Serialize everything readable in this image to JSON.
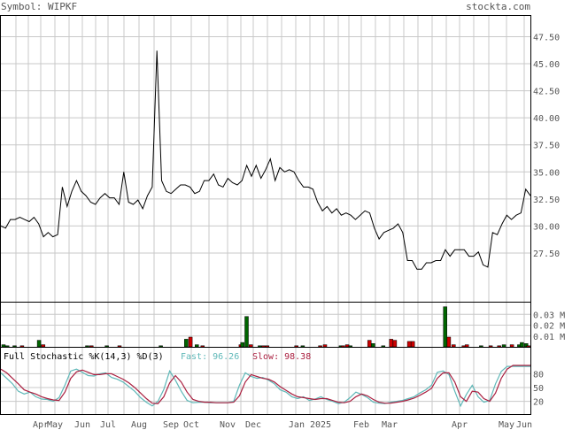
{
  "header": {
    "symbol_label": "Symbol: WIPKF",
    "site": "stockta.com"
  },
  "price_panel": {
    "y_ticks": [
      "47.50",
      "45.00",
      "42.50",
      "40.00",
      "37.50",
      "35.00",
      "32.50",
      "30.00",
      "27.50"
    ]
  },
  "volume_panel": {
    "y_ticks": [
      "0.03 M",
      "0.02 M",
      "0.01 M"
    ]
  },
  "stoch_panel": {
    "title": "Full Stochastic %K(14,3) %D(3)",
    "fast_label": "Fast: 96.26",
    "slow_label": "Slow: 98.38",
    "y_ticks": [
      "80",
      "50",
      "20"
    ]
  },
  "x_labels": [
    "Apr",
    "May",
    "Jun",
    "Jul",
    "Aug",
    "Sep",
    "Oct",
    "Nov",
    "Dec",
    "Jan 2025",
    "Feb",
    "Mar",
    "Apr",
    "May",
    "Jun"
  ],
  "colors": {
    "price_line": "#000000",
    "grid": "#c8c8c8",
    "volume_up": "#006400",
    "volume_down": "#cc0000",
    "fast_line": "#5fb8b8",
    "slow_line": "#aa2040",
    "fast_text": "#5fb8b8",
    "slow_text": "#aa2040"
  },
  "chart_data": [
    {
      "type": "line",
      "series": [
        {
          "values": [
            30.0,
            29.8,
            30.6,
            30.6,
            30.8,
            30.6,
            30.4,
            30.8,
            30.2,
            29.0,
            29.4,
            29.0,
            29.2,
            33.6,
            31.8,
            33.2,
            34.2,
            33.2,
            32.8,
            32.2,
            32.0,
            32.6,
            33.0,
            32.6,
            32.6,
            32.0,
            35.0,
            32.2,
            32.0,
            32.4,
            31.6,
            32.8,
            33.6,
            46.2,
            34.2,
            33.2,
            33.0,
            33.4,
            33.8,
            33.8,
            33.6,
            33.0,
            33.2,
            34.2,
            34.2,
            34.8,
            33.8,
            33.6,
            34.4,
            34.0,
            33.8,
            34.2,
            35.6,
            34.6,
            35.6,
            34.4,
            35.2,
            36.2,
            34.2,
            35.4,
            35.0,
            35.2,
            35.0,
            34.2,
            33.6,
            33.6,
            33.4,
            32.2,
            31.4,
            31.8,
            31.2,
            31.6,
            31.0,
            31.2,
            31.0,
            30.6,
            31.0,
            31.4,
            31.2,
            29.8,
            28.8,
            29.4,
            29.6,
            29.8,
            30.2,
            29.4,
            26.8,
            26.8,
            26.0,
            26.0,
            26.6,
            26.6,
            26.8,
            26.8,
            27.8,
            27.2,
            27.8,
            27.8,
            27.8,
            27.2,
            27.2,
            27.6,
            26.4,
            26.2,
            29.4,
            29.2,
            30.2,
            31.0,
            30.6,
            31.0,
            31.2,
            33.4,
            32.8
          ]
        }
      ],
      "y_range": [
        23.0,
        49.5
      ],
      "grid": true
    },
    {
      "type": "bar",
      "title": "",
      "values": [
        0.002,
        0.001,
        0.001,
        0.001,
        0.006,
        0.002,
        0.001,
        0.001,
        0.001,
        0.001,
        0.001,
        0.007,
        0.009,
        0.002,
        0.001,
        0.002,
        0.001,
        0.001,
        0.001,
        0.004,
        0.028,
        0.002,
        0.001,
        0.001,
        0.001,
        0.001,
        0.002,
        0.001,
        0.002,
        0.001,
        0.006,
        0.003,
        0.001,
        0.007,
        0.006,
        0.005,
        0.005,
        0.037,
        0.009,
        0.002,
        0.001,
        0.002,
        0.001,
        0.001,
        0.001,
        0.002,
        0.002,
        0.002,
        0.004,
        0.003,
        0.001
      ],
      "directions": [
        "up",
        "up",
        "up",
        "down",
        "up",
        "down",
        "up",
        "down",
        "up",
        "down",
        "up",
        "up",
        "down",
        "up",
        "down",
        "down",
        "up",
        "down",
        "down",
        "up",
        "up",
        "down",
        "down",
        "up",
        "up",
        "down",
        "down",
        "down",
        "down",
        "up",
        "down",
        "up",
        "up",
        "down",
        "down",
        "down",
        "down",
        "up",
        "down",
        "down",
        "down",
        "down",
        "up",
        "down",
        "down",
        "up",
        "down",
        "up",
        "up",
        "up",
        "down"
      ],
      "x_positions": [
        0.5,
        1.2,
        2.6,
        4.0,
        7.2,
        8.0,
        16.3,
        17.1,
        20.0,
        22.4,
        30.2,
        35.0,
        35.8,
        37.0,
        38.1,
        45.3,
        48.9,
        49.6,
        50.3,
        45.6,
        46.4,
        47.2,
        55.8,
        57.0,
        64.2,
        60.3,
        61.2,
        64.6,
        65.4,
        66.0,
        69.6,
        70.3,
        72.2,
        73.7,
        74.4,
        77.1,
        77.8,
        83.9,
        84.6,
        85.5,
        87.4,
        88.0,
        90.7,
        92.5,
        94.1,
        95.0,
        96.5,
        97.9,
        98.4,
        99.2,
        99.6
      ],
      "y_range": [
        0,
        0.04
      ]
    },
    {
      "type": "line",
      "series": [
        {
          "name": "Fast",
          "values": [
            82,
            70,
            58,
            42,
            36,
            40,
            30,
            25,
            24,
            20,
            28,
            55,
            86,
            90,
            83,
            76,
            75,
            80,
            82,
            72,
            68,
            62,
            52,
            42,
            28,
            18,
            10,
            20,
            46,
            86,
            66,
            42,
            22,
            17,
            18,
            18,
            17,
            17,
            17,
            17,
            20,
            55,
            82,
            74,
            70,
            72,
            66,
            58,
            45,
            40,
            30,
            26,
            30,
            22,
            25,
            30,
            24,
            20,
            15,
            18,
            28,
            40,
            35,
            28,
            18,
            16,
            15,
            18,
            20,
            22,
            26,
            30,
            38,
            45,
            55,
            83,
            86,
            78,
            42,
            10,
            35,
            55,
            30,
            18,
            22,
            58,
            85,
            96,
            96,
            96,
            96,
            96
          ]
        },
        {
          "name": "Slow",
          "values": [
            90,
            82,
            70,
            58,
            45,
            40,
            36,
            30,
            26,
            23,
            22,
            40,
            70,
            84,
            88,
            83,
            78,
            78,
            80,
            80,
            74,
            68,
            60,
            50,
            38,
            26,
            16,
            15,
            30,
            60,
            76,
            62,
            40,
            24,
            20,
            18,
            18,
            17,
            17,
            17,
            18,
            32,
            62,
            78,
            74,
            70,
            68,
            62,
            52,
            44,
            36,
            30,
            28,
            26,
            24,
            26,
            26,
            22,
            18,
            17,
            20,
            30,
            36,
            32,
            24,
            18,
            16,
            16,
            18,
            20,
            23,
            27,
            33,
            40,
            48,
            70,
            82,
            82,
            62,
            30,
            20,
            42,
            40,
            26,
            20,
            38,
            70,
            90,
            98,
            98,
            98,
            98
          ]
        }
      ],
      "y_range": [
        0,
        100
      ],
      "y_ticks": [
        20,
        50,
        80
      ]
    }
  ]
}
